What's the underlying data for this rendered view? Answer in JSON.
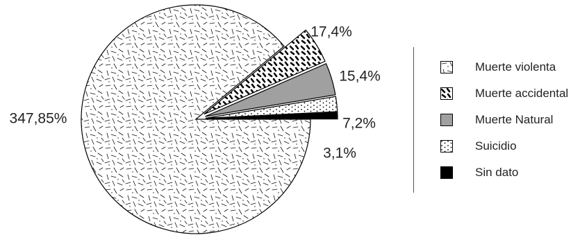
{
  "chart_data": {
    "type": "pie",
    "slices": [
      {
        "name": "Muerte violenta",
        "value": 347.85,
        "label": "347,85%",
        "color": "#ffffff",
        "pattern": "dashes"
      },
      {
        "name": "Muerte accidental",
        "value": 17.4,
        "label": "17,4%",
        "color": "#000000",
        "pattern": "bold-dashes"
      },
      {
        "name": "Muerte Natural",
        "value": 15.4,
        "label": "15,4%",
        "color": "#a0a0a0",
        "pattern": "solid"
      },
      {
        "name": "Suicidio",
        "value": 7.2,
        "label": "7,2%",
        "color": "#ffffff",
        "pattern": "dots"
      },
      {
        "name": "Sin dato",
        "value": 3.1,
        "label": "3,1%",
        "color": "#000000",
        "pattern": "solid"
      }
    ],
    "legend": {
      "position": "right",
      "items": [
        "Muerte violenta",
        "Muerte accidental",
        "Muerte Natural",
        "Suicidio",
        "Sin dato"
      ]
    }
  }
}
